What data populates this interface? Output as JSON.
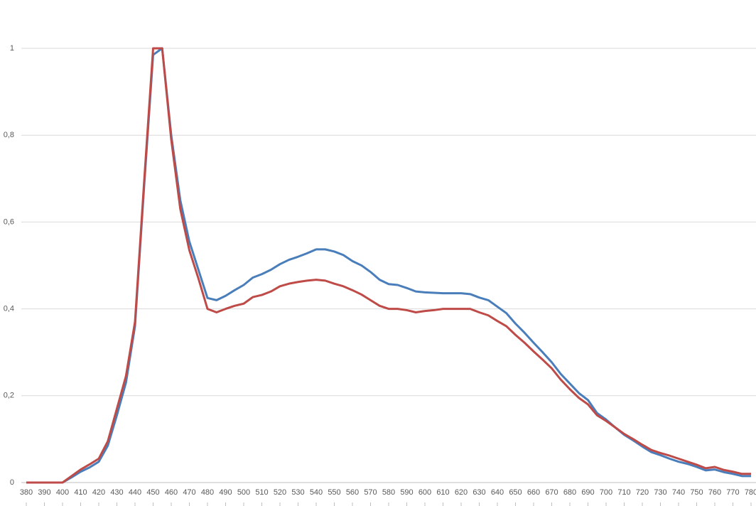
{
  "chart_data": {
    "type": "line",
    "x": [
      380,
      385,
      390,
      395,
      400,
      405,
      410,
      415,
      420,
      425,
      430,
      435,
      440,
      445,
      450,
      455,
      460,
      465,
      470,
      475,
      480,
      485,
      490,
      495,
      500,
      505,
      510,
      515,
      520,
      525,
      530,
      535,
      540,
      545,
      550,
      555,
      560,
      565,
      570,
      575,
      580,
      585,
      590,
      595,
      600,
      605,
      610,
      615,
      620,
      625,
      630,
      635,
      640,
      645,
      650,
      655,
      660,
      665,
      670,
      675,
      680,
      685,
      690,
      695,
      700,
      705,
      710,
      715,
      720,
      725,
      730,
      735,
      740,
      745,
      750,
      755,
      760,
      765,
      770,
      775,
      780
    ],
    "xlim": [
      380,
      780
    ],
    "xticks": [
      380,
      390,
      400,
      410,
      420,
      430,
      440,
      450,
      460,
      470,
      480,
      490,
      500,
      510,
      520,
      530,
      540,
      550,
      560,
      570,
      580,
      590,
      600,
      610,
      620,
      630,
      640,
      650,
      660,
      670,
      680,
      690,
      700,
      710,
      720,
      730,
      740,
      750,
      760,
      770,
      780
    ],
    "ylim": [
      0,
      1
    ],
    "yticks": [
      0,
      {
        "value": 0.2,
        "label": "0,2"
      },
      {
        "value": 0.4,
        "label": "0,4"
      },
      {
        "value": 0.6,
        "label": "0,6"
      },
      {
        "value": 0.8,
        "label": "0,8"
      },
      1
    ],
    "grid": true,
    "series": [
      {
        "color": "#4a7ebb",
        "values": [
          0,
          0,
          0,
          0,
          0,
          0.012,
          0.025,
          0.035,
          0.048,
          0.085,
          0.155,
          0.23,
          0.36,
          0.68,
          0.985,
          1,
          0.8,
          0.65,
          0.555,
          0.49,
          0.425,
          0.42,
          0.43,
          0.443,
          0.455,
          0.472,
          0.48,
          0.49,
          0.503,
          0.513,
          0.52,
          0.528,
          0.537,
          0.537,
          0.532,
          0.524,
          0.51,
          0.5,
          0.485,
          0.467,
          0.457,
          0.455,
          0.448,
          0.44,
          0.438,
          0.437,
          0.436,
          0.436,
          0.436,
          0.434,
          0.426,
          0.42,
          0.405,
          0.39,
          0.366,
          0.345,
          0.322,
          0.3,
          0.277,
          0.25,
          0.228,
          0.206,
          0.19,
          0.16,
          0.145,
          0.127,
          0.11,
          0.097,
          0.083,
          0.07,
          0.063,
          0.055,
          0.048,
          0.043,
          0.036,
          0.028,
          0.03,
          0.024,
          0.02,
          0.015,
          0.015
        ]
      },
      {
        "color": "#be4b48",
        "values": [
          0,
          0,
          0,
          0,
          0,
          0.015,
          0.03,
          0.042,
          0.055,
          0.095,
          0.17,
          0.245,
          0.37,
          0.69,
          1,
          1,
          0.79,
          0.63,
          0.535,
          0.47,
          0.4,
          0.392,
          0.4,
          0.407,
          0.412,
          0.427,
          0.432,
          0.44,
          0.452,
          0.458,
          0.462,
          0.465,
          0.467,
          0.465,
          0.458,
          0.452,
          0.443,
          0.433,
          0.42,
          0.407,
          0.4,
          0.4,
          0.397,
          0.392,
          0.395,
          0.397,
          0.4,
          0.4,
          0.4,
          0.4,
          0.392,
          0.385,
          0.372,
          0.36,
          0.34,
          0.322,
          0.302,
          0.283,
          0.263,
          0.237,
          0.215,
          0.195,
          0.18,
          0.155,
          0.142,
          0.127,
          0.112,
          0.1,
          0.087,
          0.075,
          0.068,
          0.062,
          0.055,
          0.048,
          0.041,
          0.033,
          0.036,
          0.029,
          0.025,
          0.02,
          0.02
        ]
      }
    ]
  }
}
